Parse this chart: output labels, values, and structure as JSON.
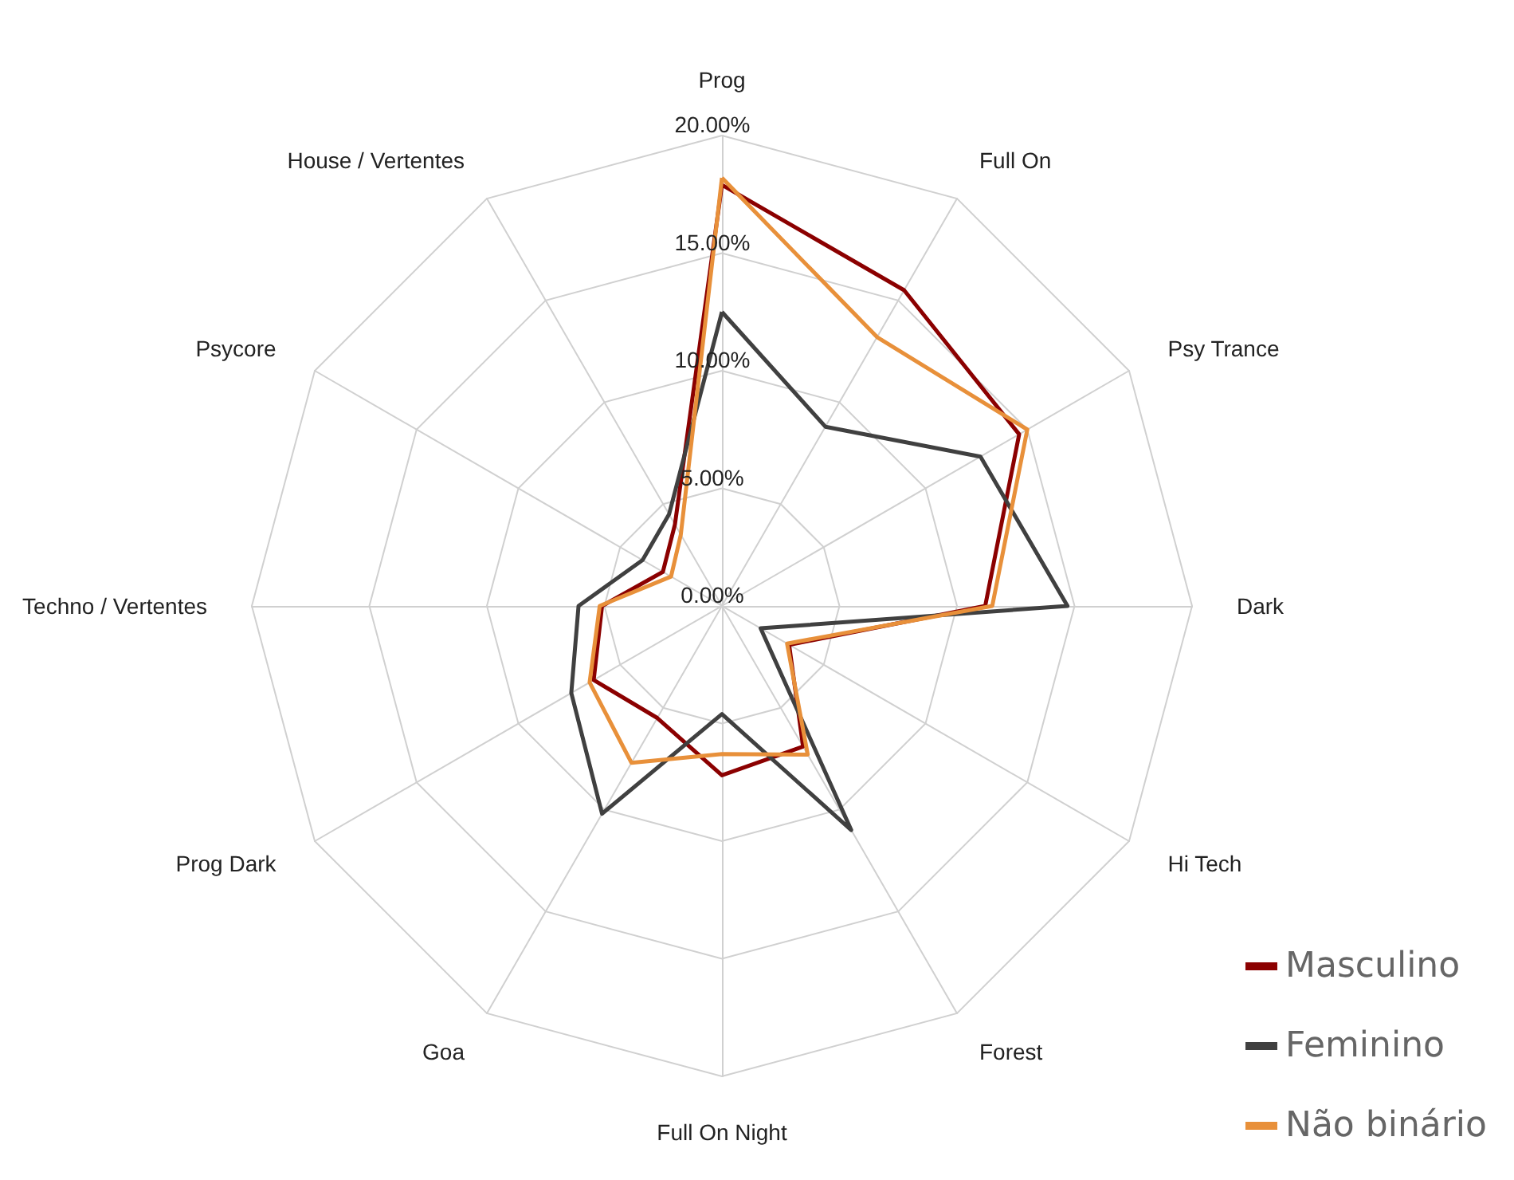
{
  "chart_data": {
    "type": "radar",
    "categories": [
      "Prog",
      "Full On",
      "Psy Trance",
      "Dark",
      "Hi Tech",
      "Forest",
      "Full On Night",
      "Goa",
      "Prog Dark",
      "Techno / Vertentes",
      "Psycore",
      "House / Vertentes"
    ],
    "ylim": [
      0,
      20
    ],
    "yticks": [
      {
        "value": 0,
        "label": "0.00%"
      },
      {
        "value": 5,
        "label": "5.00%"
      },
      {
        "value": 10,
        "label": "10.00%"
      },
      {
        "value": 15,
        "label": "15.00%"
      },
      {
        "value": 20,
        "label": "20.00%"
      }
    ],
    "grid": true,
    "legend": "bottom right",
    "marker": "none",
    "series": [
      {
        "name": "Masculino",
        "color": "#8b0000",
        "values": [
          17.9,
          15.5,
          14.6,
          11.2,
          3.3,
          6.9,
          7.2,
          5.5,
          6.3,
          5.1,
          2.9,
          4
        ]
      },
      {
        "name": "Feminino",
        "color": "#404040",
        "values": [
          12.5,
          8.8,
          12.7,
          14.7,
          1.9,
          11,
          4.6,
          10.2,
          7.4,
          6.1,
          3.9,
          4.5
        ]
      },
      {
        "name": "Não binário",
        "color": "#e8903a",
        "values": [
          18.2,
          13.2,
          15,
          11.5,
          3.2,
          7.3,
          6.3,
          7.7,
          6.5,
          5.2,
          2.5,
          3.5
        ]
      }
    ]
  }
}
